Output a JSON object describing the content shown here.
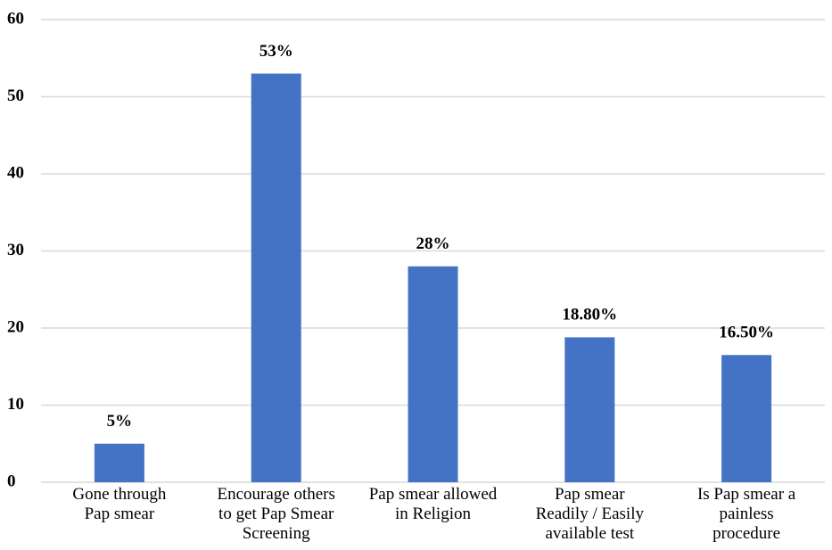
{
  "chart_data": {
    "type": "bar",
    "categories": [
      [
        "Gone through",
        "Pap smear"
      ],
      [
        "Encourage others",
        "to get Pap Smear",
        "Screening"
      ],
      [
        "Pap smear allowed",
        "in Religion"
      ],
      [
        "Pap smear",
        "Readily / Easily",
        "available test"
      ],
      [
        "Is Pap smear a",
        "painless",
        "procedure"
      ]
    ],
    "values": [
      5,
      53,
      28,
      18.8,
      16.5
    ],
    "value_labels": [
      "5%",
      "53%",
      "28%",
      "18.80%",
      "16.50%"
    ],
    "color": "#4472c4",
    "ylim": [
      0,
      60
    ],
    "yticks": [
      0,
      10,
      20,
      30,
      40,
      50,
      60
    ],
    "grid": true
  }
}
